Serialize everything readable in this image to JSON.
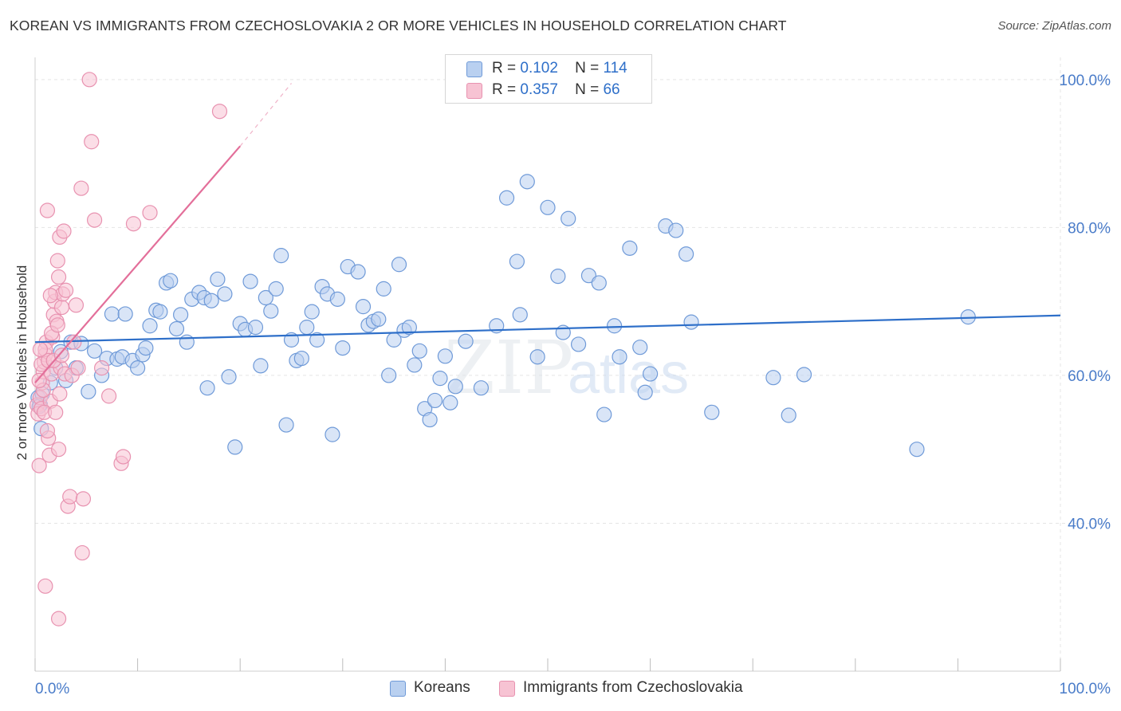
{
  "title": "KOREAN VS IMMIGRANTS FROM CZECHOSLOVAKIA 2 OR MORE VEHICLES IN HOUSEHOLD CORRELATION CHART",
  "source": "Source: ZipAtlas.com",
  "watermark": {
    "zip": "ZIP",
    "atlas": "atlas"
  },
  "legend_stats": [
    {
      "r_label": "R =",
      "r_value": "0.102",
      "n_label": "N =",
      "n_value": "114"
    },
    {
      "r_label": "R =",
      "r_value": "0.357",
      "n_label": "N =",
      "n_value": "66"
    }
  ],
  "colors": {
    "blue": "#2e6fc9",
    "blue_fill": "#b9d0f0",
    "pink": "#e36f9a",
    "pink_fill": "#f7c3d3",
    "tick_text": "#4a7cc9",
    "grid": "#e5e5e5"
  },
  "chart_data": {
    "type": "scatter",
    "xlabel": "",
    "ylabel": "2 or more Vehicles in Household",
    "xlim": [
      0,
      100
    ],
    "ylim": [
      20,
      103
    ],
    "x_tick_labels": [
      "0.0%",
      "100.0%"
    ],
    "y_ticks": [
      40,
      60,
      80,
      100
    ],
    "y_tick_labels": [
      "40.0%",
      "60.0%",
      "80.0%",
      "100.0%"
    ],
    "grid": true,
    "legend_position": "bottom-center",
    "series": [
      {
        "name": "Koreans",
        "color": "#2e6fc9",
        "r": 0.102,
        "n": 114,
        "trend": {
          "x": [
            0,
            100
          ],
          "y": [
            64.5,
            68.1
          ]
        },
        "points": [
          [
            0.3,
            57.0
          ],
          [
            0.5,
            56.0
          ],
          [
            0.6,
            52.8
          ],
          [
            0.4,
            55.8
          ],
          [
            0.7,
            57.5
          ],
          [
            1.5,
            59.0
          ],
          [
            2.0,
            61.0
          ],
          [
            2.5,
            63.2
          ],
          [
            3.0,
            59.3
          ],
          [
            3.5,
            64.5
          ],
          [
            4.0,
            61.0
          ],
          [
            4.5,
            64.3
          ],
          [
            5.2,
            57.8
          ],
          [
            5.8,
            63.3
          ],
          [
            6.5,
            60.0
          ],
          [
            7.0,
            62.3
          ],
          [
            7.5,
            68.3
          ],
          [
            8.0,
            62.2
          ],
          [
            8.5,
            62.5
          ],
          [
            8.8,
            68.3
          ],
          [
            9.5,
            62.0
          ],
          [
            10.0,
            61.0
          ],
          [
            10.5,
            62.8
          ],
          [
            10.8,
            63.7
          ],
          [
            11.2,
            66.7
          ],
          [
            11.8,
            68.8
          ],
          [
            12.2,
            68.6
          ],
          [
            12.8,
            72.5
          ],
          [
            13.2,
            72.8
          ],
          [
            13.8,
            66.3
          ],
          [
            14.2,
            68.2
          ],
          [
            14.8,
            64.5
          ],
          [
            15.3,
            70.3
          ],
          [
            16.0,
            71.2
          ],
          [
            16.5,
            70.5
          ],
          [
            16.8,
            58.3
          ],
          [
            17.2,
            70.1
          ],
          [
            17.8,
            73.0
          ],
          [
            18.5,
            71.0
          ],
          [
            18.9,
            59.8
          ],
          [
            19.5,
            50.3
          ],
          [
            20.0,
            67.0
          ],
          [
            20.5,
            66.2
          ],
          [
            21.0,
            72.7
          ],
          [
            21.5,
            66.5
          ],
          [
            22.0,
            61.3
          ],
          [
            22.5,
            70.5
          ],
          [
            23.0,
            68.7
          ],
          [
            23.5,
            71.7
          ],
          [
            24.0,
            76.2
          ],
          [
            24.5,
            53.3
          ],
          [
            25.0,
            64.8
          ],
          [
            25.5,
            62.0
          ],
          [
            26.0,
            62.3
          ],
          [
            26.5,
            66.5
          ],
          [
            27.0,
            68.6
          ],
          [
            27.5,
            64.8
          ],
          [
            28.0,
            72.0
          ],
          [
            28.5,
            71.0
          ],
          [
            29.0,
            52.0
          ],
          [
            29.5,
            70.3
          ],
          [
            30.0,
            63.7
          ],
          [
            30.5,
            74.7
          ],
          [
            31.5,
            74.0
          ],
          [
            32.0,
            69.3
          ],
          [
            32.5,
            66.8
          ],
          [
            33.0,
            67.3
          ],
          [
            33.5,
            67.6
          ],
          [
            34.0,
            71.7
          ],
          [
            34.5,
            60.0
          ],
          [
            35.0,
            64.8
          ],
          [
            35.5,
            75.0
          ],
          [
            36.0,
            66.1
          ],
          [
            36.5,
            66.5
          ],
          [
            37.0,
            61.4
          ],
          [
            37.5,
            63.3
          ],
          [
            38.0,
            55.5
          ],
          [
            38.5,
            54.0
          ],
          [
            39.0,
            56.6
          ],
          [
            39.5,
            59.6
          ],
          [
            40.0,
            62.6
          ],
          [
            40.5,
            56.3
          ],
          [
            41.0,
            58.5
          ],
          [
            42.0,
            64.6
          ],
          [
            43.5,
            58.3
          ],
          [
            45.0,
            66.7
          ],
          [
            46.0,
            84.0
          ],
          [
            47.0,
            75.4
          ],
          [
            47.3,
            68.2
          ],
          [
            48.0,
            86.2
          ],
          [
            49.0,
            62.5
          ],
          [
            50.0,
            82.7
          ],
          [
            51.0,
            73.4
          ],
          [
            51.5,
            65.8
          ],
          [
            52.0,
            81.2
          ],
          [
            53.0,
            64.2
          ],
          [
            54.0,
            73.5
          ],
          [
            55.0,
            72.5
          ],
          [
            55.5,
            54.7
          ],
          [
            56.5,
            66.7
          ],
          [
            57.0,
            62.5
          ],
          [
            58.0,
            77.2
          ],
          [
            59.0,
            63.8
          ],
          [
            59.5,
            57.7
          ],
          [
            60.0,
            60.2
          ],
          [
            61.5,
            80.2
          ],
          [
            62.5,
            79.6
          ],
          [
            63.5,
            76.4
          ],
          [
            64.0,
            67.2
          ],
          [
            66.0,
            55.0
          ],
          [
            72.0,
            59.7
          ],
          [
            73.5,
            54.6
          ],
          [
            75.0,
            60.1
          ],
          [
            86.0,
            50.0
          ],
          [
            91.0,
            67.9
          ]
        ]
      },
      {
        "name": "Immigrants from Czechoslovakia",
        "color": "#e36f9a",
        "r": 0.357,
        "n": 66,
        "trend": {
          "x": [
            0,
            20
          ],
          "y": [
            59.0,
            91.0
          ]
        },
        "trend_dashed": {
          "x": [
            20,
            25
          ],
          "y": [
            91.0,
            99.5
          ]
        },
        "points": [
          [
            0.2,
            56.0
          ],
          [
            0.3,
            54.8
          ],
          [
            0.4,
            47.8
          ],
          [
            0.5,
            57.0
          ],
          [
            0.6,
            55.5
          ],
          [
            0.7,
            59.0
          ],
          [
            0.8,
            60.5
          ],
          [
            0.9,
            61.8
          ],
          [
            1.0,
            62.8
          ],
          [
            1.1,
            64.5
          ],
          [
            1.2,
            82.3
          ],
          [
            1.3,
            51.5
          ],
          [
            1.4,
            49.2
          ],
          [
            1.5,
            56.5
          ],
          [
            1.6,
            60.2
          ],
          [
            1.7,
            65.2
          ],
          [
            1.8,
            68.2
          ],
          [
            1.9,
            70.0
          ],
          [
            2.0,
            71.2
          ],
          [
            2.1,
            67.3
          ],
          [
            2.2,
            75.5
          ],
          [
            2.3,
            73.3
          ],
          [
            2.4,
            78.7
          ],
          [
            2.5,
            61.0
          ],
          [
            2.6,
            69.2
          ],
          [
            2.7,
            71.0
          ],
          [
            2.8,
            79.5
          ],
          [
            2.9,
            60.2
          ],
          [
            3.0,
            71.5
          ],
          [
            1.0,
            63.5
          ],
          [
            0.8,
            58.0
          ],
          [
            1.6,
            65.7
          ],
          [
            2.2,
            66.8
          ],
          [
            2.4,
            57.5
          ],
          [
            1.2,
            52.5
          ],
          [
            2.3,
            50.0
          ],
          [
            3.2,
            42.3
          ],
          [
            3.4,
            43.6
          ],
          [
            3.6,
            60.0
          ],
          [
            3.8,
            64.5
          ],
          [
            4.0,
            69.5
          ],
          [
            4.2,
            61.0
          ],
          [
            4.5,
            85.3
          ],
          [
            4.6,
            36.0
          ],
          [
            4.7,
            43.3
          ],
          [
            5.3,
            100.0
          ],
          [
            5.5,
            91.6
          ],
          [
            5.8,
            81.0
          ],
          [
            6.5,
            61.0
          ],
          [
            7.2,
            57.2
          ],
          [
            8.4,
            48.1
          ],
          [
            8.6,
            49.0
          ],
          [
            9.6,
            80.5
          ],
          [
            11.2,
            82.0
          ],
          [
            18.0,
            95.7
          ],
          [
            1.0,
            31.5
          ],
          [
            2.3,
            27.1
          ],
          [
            0.4,
            59.3
          ],
          [
            0.6,
            61.5
          ],
          [
            0.9,
            55.0
          ],
          [
            1.3,
            62.0
          ],
          [
            1.5,
            70.8
          ],
          [
            1.8,
            62.0
          ],
          [
            0.5,
            63.5
          ],
          [
            2.0,
            55.0
          ],
          [
            2.6,
            62.7
          ]
        ]
      }
    ]
  }
}
